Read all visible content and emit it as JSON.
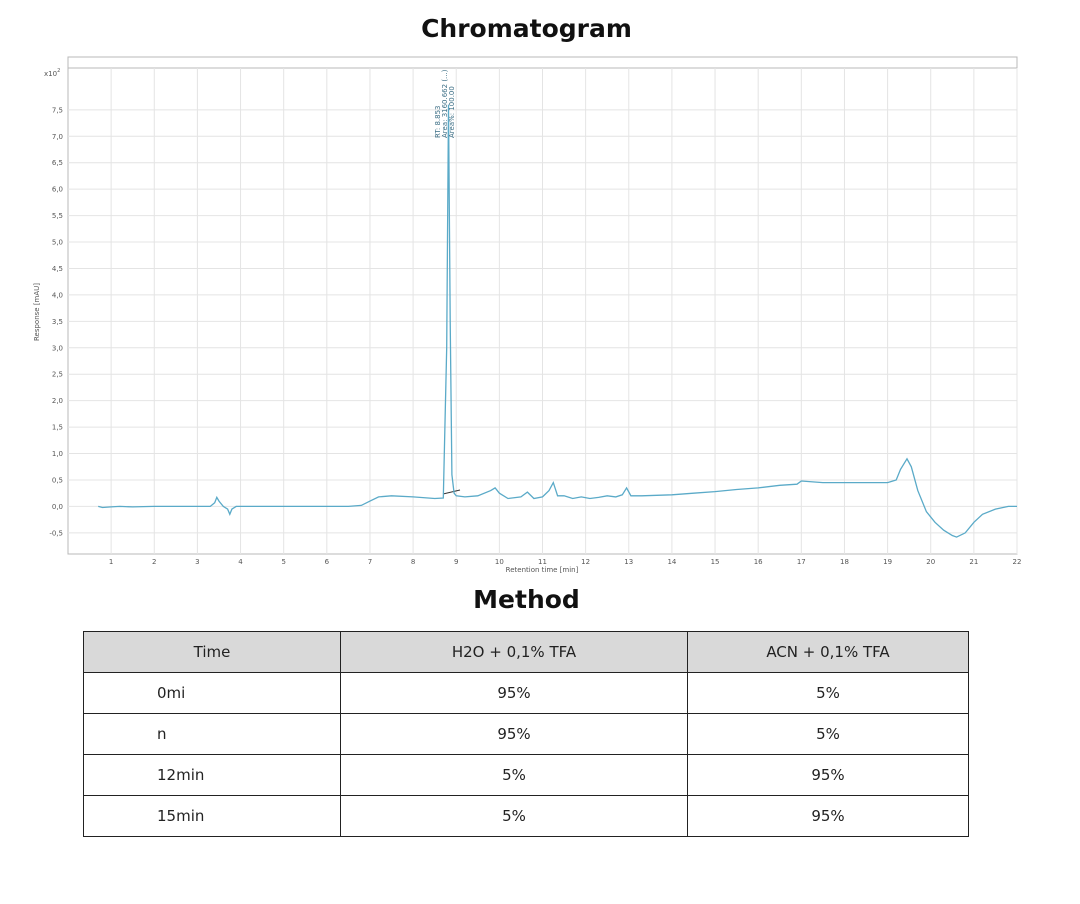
{
  "page": {
    "chart_heading": "Chromatogram",
    "method_heading": "Method"
  },
  "chart_data": {
    "type": "line",
    "title": "Chromatogram",
    "xlabel": "Retention time [min]",
    "ylabel": "Response [mAU]",
    "y_multiplier_label": "x10",
    "y_multiplier_exp": "2",
    "xlim": [
      0,
      22
    ],
    "ylim": [
      -0.9,
      8.5
    ],
    "x_ticks": [
      1,
      2,
      3,
      4,
      5,
      6,
      7,
      8,
      9,
      10,
      11,
      12,
      13,
      14,
      15,
      16,
      17,
      18,
      19,
      20,
      21,
      22
    ],
    "y_ticks": [
      -0.5,
      0.0,
      0.5,
      1.0,
      1.5,
      2.0,
      2.5,
      3.0,
      3.5,
      4.0,
      4.5,
      5.0,
      5.5,
      6.0,
      6.5,
      7.0,
      7.5
    ],
    "y_tick_labels": [
      "-0,5",
      "0,0",
      "0,5",
      "1,0",
      "1,5",
      "2,0",
      "2,5",
      "3,0",
      "3,5",
      "4,0",
      "4,5",
      "5,0",
      "5,5",
      "6,0",
      "6,5",
      "7,0",
      "7,5"
    ],
    "grid": true,
    "series_color": "#5aaac8",
    "series": [
      {
        "x": [
          0.7,
          0.8,
          1.0,
          1.2,
          1.5,
          2.0,
          2.5,
          3.0,
          3.3,
          3.4,
          3.45,
          3.5,
          3.6,
          3.7,
          3.75,
          3.8,
          3.9,
          4.0,
          4.5,
          5.0,
          5.5,
          6.0,
          6.5,
          6.8,
          7.0,
          7.2,
          7.5,
          8.0,
          8.5,
          8.7,
          8.78,
          8.82,
          8.86,
          8.9,
          8.95,
          9.0,
          9.2,
          9.5,
          9.8,
          9.9,
          10.0,
          10.2,
          10.5,
          10.65,
          10.8,
          11.0,
          11.15,
          11.25,
          11.35,
          11.5,
          11.7,
          11.9,
          12.1,
          12.3,
          12.5,
          12.7,
          12.85,
          12.95,
          13.05,
          13.3,
          14.0,
          14.5,
          15.0,
          15.5,
          16.0,
          16.5,
          16.9,
          17.0,
          17.5,
          18.0,
          18.5,
          19.0,
          19.2,
          19.3,
          19.45,
          19.55,
          19.7,
          19.9,
          20.1,
          20.3,
          20.5,
          20.6,
          20.8,
          21.0,
          21.2,
          21.5,
          21.8,
          22.0
        ],
        "y": [
          0.0,
          -0.02,
          -0.01,
          0.0,
          -0.01,
          0.0,
          0.0,
          0.0,
          0.0,
          0.07,
          0.17,
          0.1,
          0.0,
          -0.05,
          -0.15,
          -0.05,
          0.0,
          0.0,
          0.0,
          0.0,
          0.0,
          0.0,
          0.0,
          0.02,
          0.1,
          0.18,
          0.2,
          0.18,
          0.15,
          0.16,
          3.0,
          7.6,
          3.5,
          0.6,
          0.25,
          0.2,
          0.18,
          0.2,
          0.3,
          0.35,
          0.25,
          0.15,
          0.18,
          0.27,
          0.15,
          0.18,
          0.3,
          0.45,
          0.2,
          0.2,
          0.15,
          0.18,
          0.15,
          0.17,
          0.2,
          0.18,
          0.22,
          0.35,
          0.2,
          0.2,
          0.22,
          0.25,
          0.28,
          0.32,
          0.35,
          0.4,
          0.42,
          0.48,
          0.45,
          0.45,
          0.45,
          0.45,
          0.5,
          0.7,
          0.9,
          0.75,
          0.3,
          -0.1,
          -0.3,
          -0.45,
          -0.55,
          -0.58,
          -0.5,
          -0.3,
          -0.15,
          -0.05,
          0.0,
          0.0
        ]
      }
    ],
    "peak_annotation": {
      "x": 8.85,
      "lines": [
        "RT: 8.853",
        "Area: 3160.662 (...)",
        "Area%: 100.00"
      ]
    }
  },
  "method_table": {
    "headers": [
      "Time",
      "H2O + 0,1% TFA",
      "ACN + 0,1% TFA"
    ],
    "rows": [
      [
        "0mi",
        "95%",
        "5%"
      ],
      [
        "n",
        "95%",
        "5%"
      ],
      [
        "12min",
        "5%",
        "95%"
      ],
      [
        "15min",
        "5%",
        "95%"
      ]
    ]
  }
}
